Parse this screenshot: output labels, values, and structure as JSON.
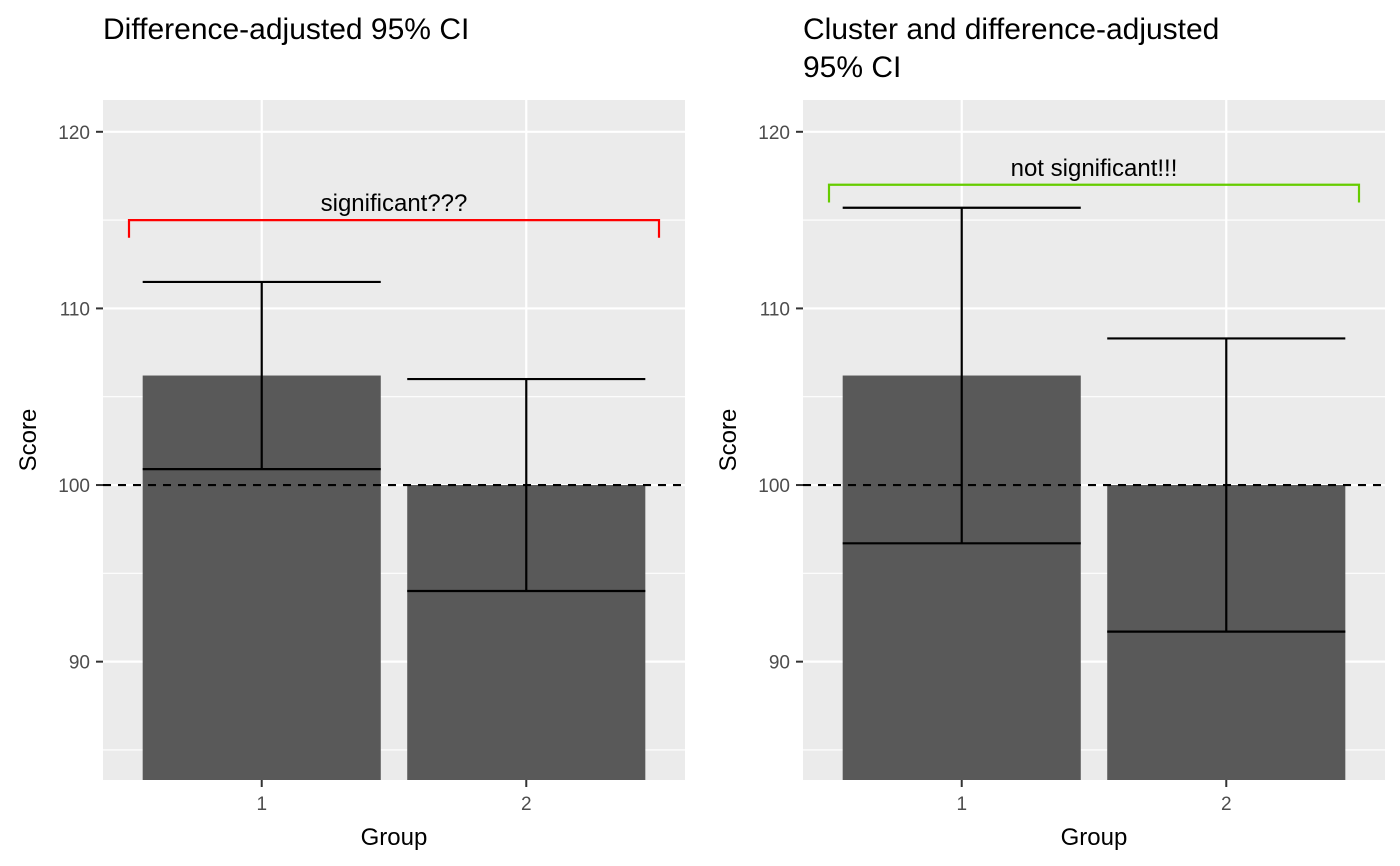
{
  "chart_data": [
    {
      "type": "bar",
      "title": "Difference-adjusted 95% CI",
      "xlabel": "Group",
      "ylabel": "Score",
      "categories": [
        "1",
        "2"
      ],
      "values": [
        106.2,
        100.0
      ],
      "error_bars": [
        {
          "low": 100.9,
          "high": 111.5
        },
        {
          "low": 94.0,
          "high": 106.0
        }
      ],
      "yticks": [
        90,
        100,
        110,
        120
      ],
      "ylim": [
        83.3,
        121.8
      ],
      "reference_line": 100,
      "bracket": {
        "label": "significant???",
        "y": 115.0,
        "tick_depth": 1.0,
        "color": "#ff0000"
      },
      "bar_color": "#595959",
      "grid": true
    },
    {
      "type": "bar",
      "title": "Cluster and difference-adjusted\n95% CI",
      "xlabel": "Group",
      "ylabel": "Score",
      "categories": [
        "1",
        "2"
      ],
      "values": [
        106.2,
        100.0
      ],
      "error_bars": [
        {
          "low": 96.7,
          "high": 115.7
        },
        {
          "low": 91.7,
          "high": 108.3
        }
      ],
      "yticks": [
        90,
        100,
        110,
        120
      ],
      "ylim": [
        83.3,
        121.8
      ],
      "reference_line": 100,
      "bracket": {
        "label": "not significant!!!",
        "y": 117.0,
        "tick_depth": 1.0,
        "color": "#66cc00"
      },
      "bar_color": "#595959",
      "grid": true
    }
  ]
}
